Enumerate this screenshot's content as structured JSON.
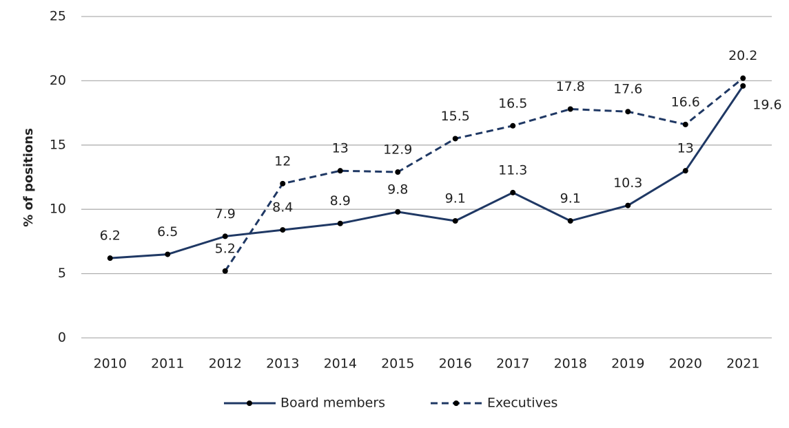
{
  "chart_data": {
    "type": "line",
    "y_label": "% of positions",
    "categories": [
      "2010",
      "2011",
      "2012",
      "2013",
      "2014",
      "2015",
      "2016",
      "2017",
      "2018",
      "2019",
      "2020",
      "2021"
    ],
    "series": [
      {
        "name": "Board members",
        "color": "#1f3864",
        "dash": false,
        "values": [
          6.2,
          6.5,
          7.9,
          8.4,
          8.9,
          9.8,
          9.1,
          11.3,
          9.1,
          10.3,
          13,
          19.6
        ]
      },
      {
        "name": "Executives",
        "color": "#1f3864",
        "dash": true,
        "values": [
          null,
          null,
          5.2,
          12,
          13,
          12.9,
          15.5,
          16.5,
          17.8,
          17.6,
          16.6,
          20.2
        ]
      }
    ],
    "ylim": [
      0,
      25
    ],
    "yticks": [
      0,
      5,
      10,
      15,
      20,
      25
    ],
    "grid": true,
    "legend": "bottom"
  }
}
